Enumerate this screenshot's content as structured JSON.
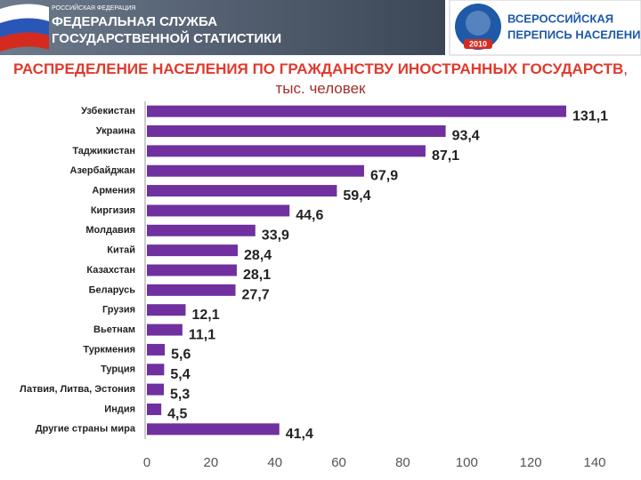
{
  "header": {
    "org_small": "РОССИЙСКАЯ ФЕДЕРАЦИЯ",
    "org_line1": "ФЕДЕРАЛЬНАЯ СЛУЖБА",
    "org_line2": "ГОСУДАРСТВЕННОЙ СТАТИСТИКИ",
    "logo_line1": "ВСЕРОССИЙСКАЯ",
    "logo_line2": "ПЕРЕПИСЬ НАСЕЛЕНИЯ",
    "logo_year": "2010"
  },
  "chart_data": {
    "type": "hbar",
    "title": "РАСПРЕДЕЛЕНИЕ НАСЕЛЕНИЯ ПО ГРАЖДАНСТВУ ИНОСТРАННЫХ ГОСУДАРСТВ",
    "unit": ", тыс. человек",
    "categories": [
      "Узбекистан",
      "Украина",
      "Таджикистан",
      "Азербайджан",
      "Армения",
      "Киргизия",
      "Молдавия",
      "Китай",
      "Казахстан",
      "Беларусь",
      "Грузия",
      "Вьетнам",
      "Туркмения",
      "Турция",
      "Латвия, Литва, Эстония",
      "Индия",
      "Другие страны мира"
    ],
    "values": [
      131.1,
      93.4,
      87.1,
      67.9,
      59.4,
      44.6,
      33.9,
      28.4,
      28.1,
      27.7,
      12.1,
      11.1,
      5.6,
      5.4,
      5.3,
      4.5,
      41.4
    ],
    "value_labels": [
      "131,1",
      "93,4",
      "87,1",
      "67,9",
      "59,4",
      "44,6",
      "33,9",
      "28,4",
      "28,1",
      "27,7",
      "12,1",
      "11,1",
      "5,6",
      "5,4",
      "5,3",
      "4,5",
      "41,4"
    ],
    "color": "#7030a0",
    "xlim": [
      0,
      140
    ],
    "xticks": [
      0,
      20,
      40,
      60,
      80,
      100,
      120,
      140
    ],
    "grid": false
  }
}
